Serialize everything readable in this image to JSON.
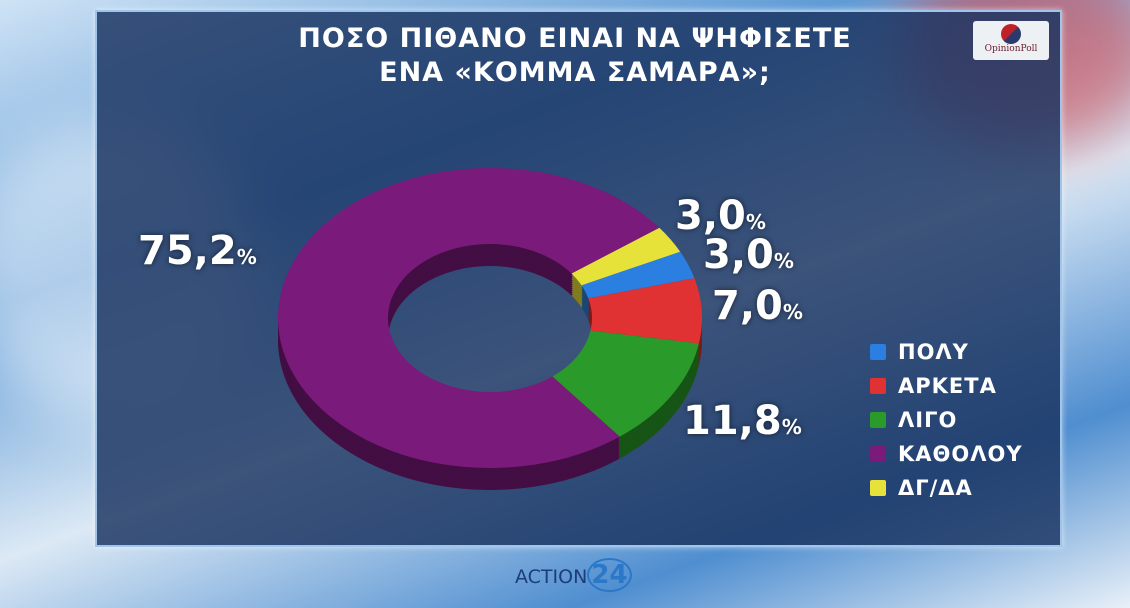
{
  "title_lines": [
    "ΠΟΣΟ ΠΙΘΑΝΟ ΕΙΝΑΙ ΝΑ ΨΗΦΙΣΕΤΕ",
    "ΕΝΑ «ΚΟΜΜΑ ΣΑΜΑΡΑ»;"
  ],
  "logo": "OpinionPoll",
  "brand": {
    "name": "ACTION",
    "num": "24"
  },
  "chart_data": {
    "type": "pie",
    "donut": true,
    "title": "ΠΟΣΟ ΠΙΘΑΝΟ ΕΙΝΑΙ ΝΑ ΨΗΦΙΣΕΤΕ ΕΝΑ «ΚΟΜΜΑ ΣΑΜΑΡΑ»;",
    "legend_position": "right",
    "slices": [
      {
        "name": "ΔΓ/ΔΑ",
        "value": 3.0,
        "label": "3,0",
        "color": "#e6e23a"
      },
      {
        "name": "ΠΟΛΥ",
        "value": 3.0,
        "label": "3,0",
        "color": "#2a7fe0"
      },
      {
        "name": "ΑΡΚΕΤΑ",
        "value": 7.0,
        "label": "7,0",
        "color": "#e03232"
      },
      {
        "name": "ΛΙΓΟ",
        "value": 11.8,
        "label": "11,8",
        "color": "#2a9a2a"
      },
      {
        "name": "ΚΑΘΟΛΟΥ",
        "value": 75.2,
        "label": "75,2",
        "color": "#7a1a7a"
      }
    ],
    "legend_order": [
      "ΠΟΛΥ",
      "ΑΡΚΕΤΑ",
      "ΛΙΓΟ",
      "ΚΑΘΟΛΟΥ",
      "ΔΓ/ΔΑ"
    ],
    "unit": "%"
  }
}
